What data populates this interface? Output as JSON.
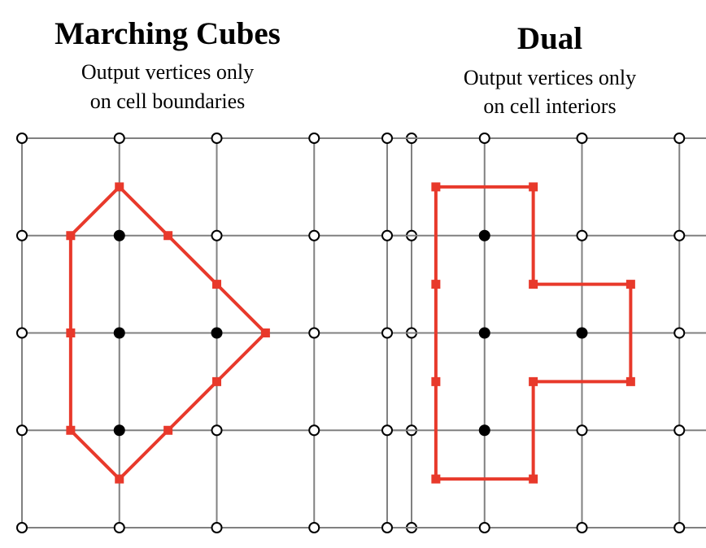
{
  "panels": [
    {
      "title": "Marching Cubes",
      "subtitle_line1": "Output vertices only",
      "subtitle_line2": "on cell boundaries",
      "inside_points": [
        [
          1,
          1
        ],
        [
          1,
          2
        ],
        [
          1,
          3
        ],
        [
          2,
          2
        ]
      ],
      "output_vertices": [
        [
          1,
          0.5
        ],
        [
          1.5,
          1
        ],
        [
          2,
          1.5
        ],
        [
          2.5,
          2
        ],
        [
          2,
          2.5
        ],
        [
          1.5,
          3
        ],
        [
          1,
          3.5
        ],
        [
          0.5,
          3
        ],
        [
          0.5,
          2
        ],
        [
          0.5,
          1
        ]
      ]
    },
    {
      "title": "Dual",
      "subtitle_line1": "Output vertices only",
      "subtitle_line2": "on cell interiors",
      "inside_points": [
        [
          1,
          1
        ],
        [
          1,
          2
        ],
        [
          1,
          3
        ],
        [
          2,
          2
        ]
      ],
      "output_vertices": [
        [
          0.5,
          0.5
        ],
        [
          1.5,
          0.5
        ],
        [
          1.5,
          1.5
        ],
        [
          2.5,
          1.5
        ],
        [
          2.5,
          2.5
        ],
        [
          1.5,
          2.5
        ],
        [
          1.5,
          3.5
        ],
        [
          0.5,
          3.5
        ],
        [
          0.5,
          2.5
        ],
        [
          0.5,
          1.5
        ]
      ]
    }
  ],
  "grid": {
    "columns": 4,
    "rows": 4
  },
  "colors": {
    "grid_line": "#808080",
    "outside_point_fill": "#ffffff",
    "point_stroke": "#000000",
    "inside_point_fill": "#000000",
    "contour": "#e8392b"
  }
}
